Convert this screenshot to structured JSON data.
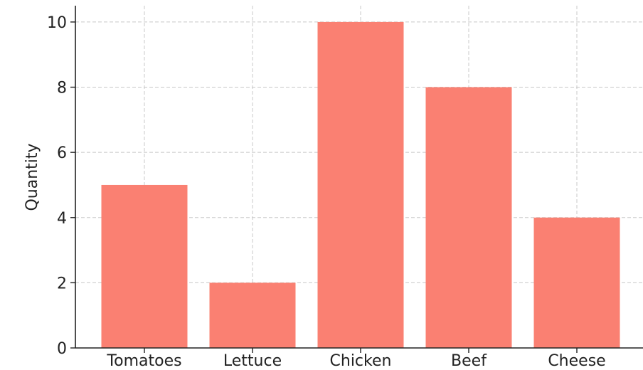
{
  "chart_data": {
    "type": "bar",
    "categories": [
      "Tomatoes",
      "Lettuce",
      "Chicken",
      "Beef",
      "Cheese"
    ],
    "values": [
      5,
      2,
      10,
      8,
      4
    ],
    "title": "",
    "xlabel": "",
    "ylabel": "Quantity",
    "ylim": [
      0,
      10.5
    ],
    "yticks": [
      0,
      2,
      4,
      6,
      8,
      10
    ],
    "grid": true,
    "legend": "none",
    "bar_color": "#fa8072"
  }
}
